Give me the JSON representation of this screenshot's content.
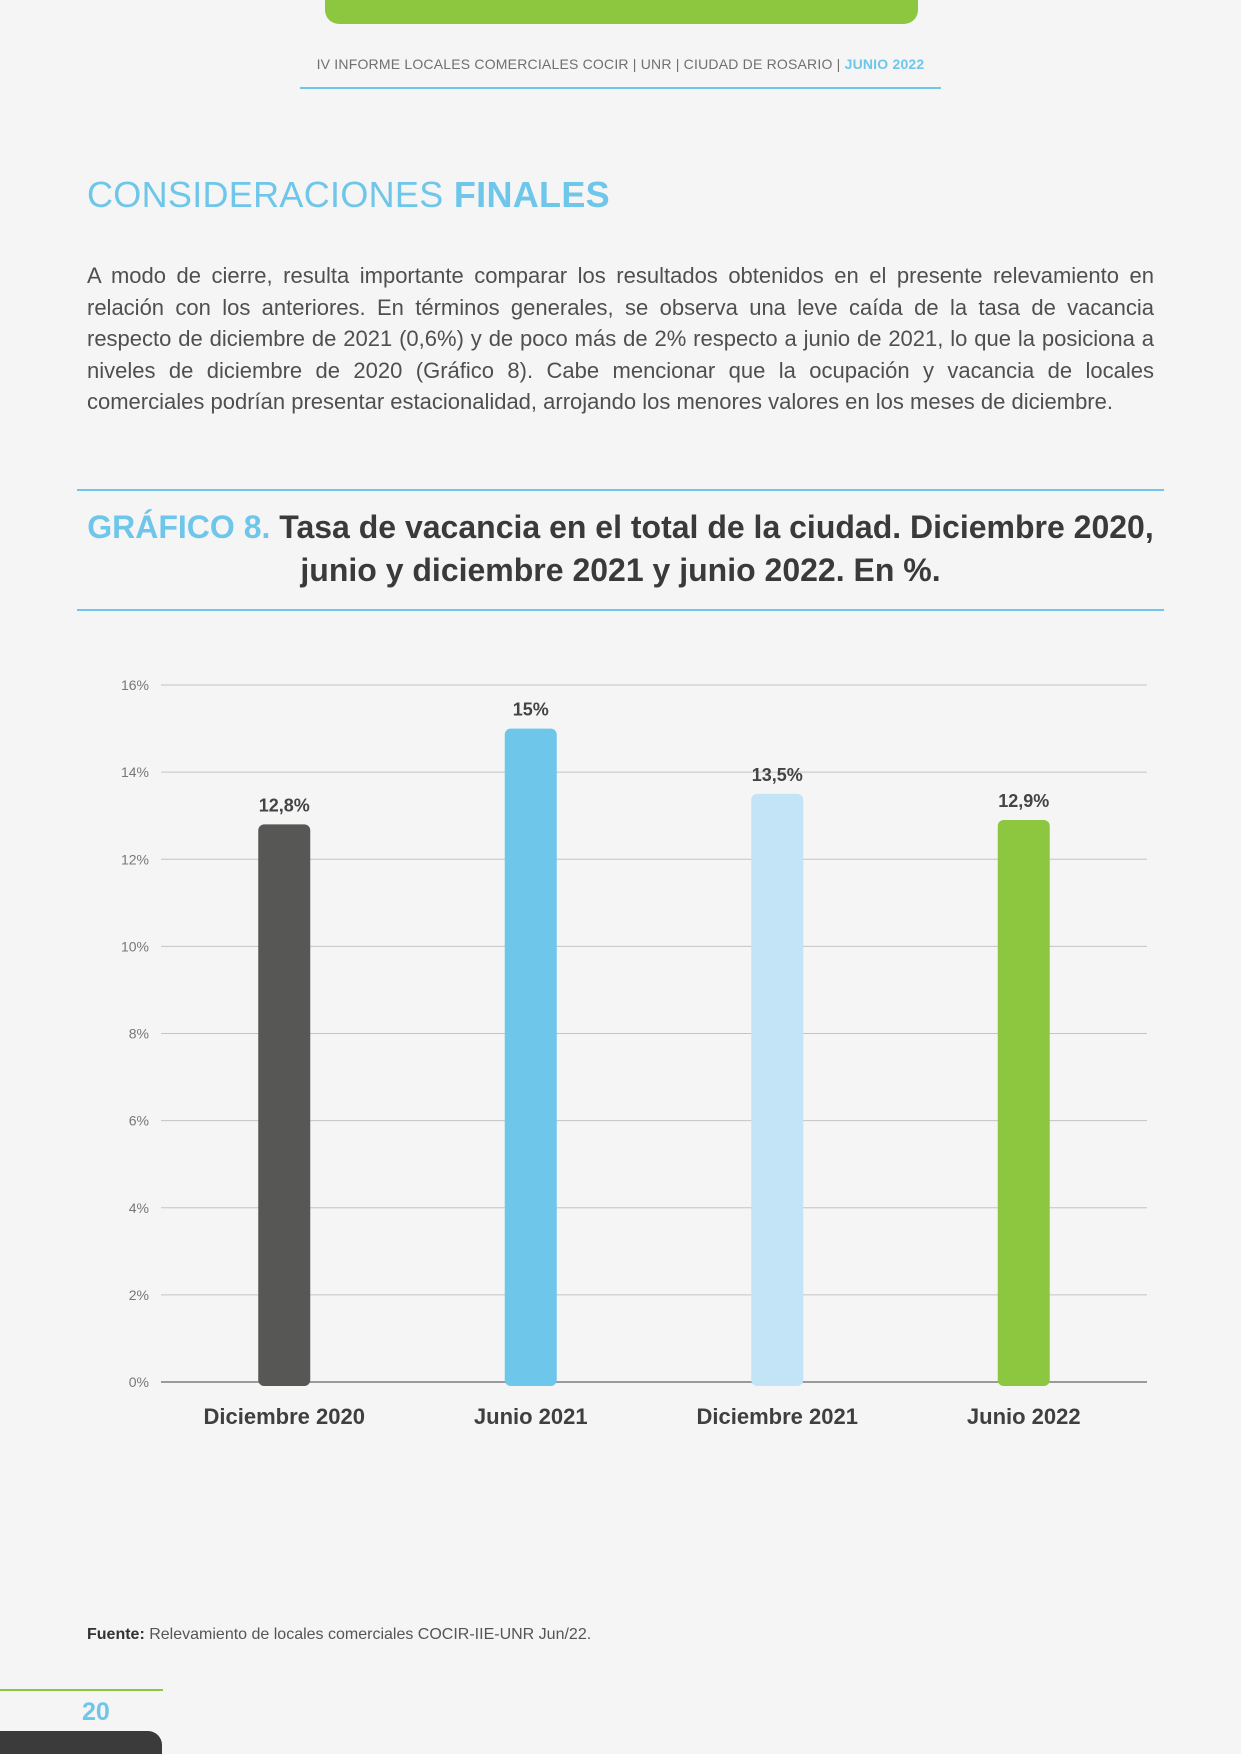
{
  "header": {
    "text": "IV INFORME LOCALES COMERCIALES COCIR | UNR | CIUDAD DE ROSARIO | ",
    "accent": "JUNIO 2022"
  },
  "section": {
    "title_light": "CONSIDERACIONES ",
    "title_bold": "FINALES"
  },
  "intro": "A modo de cierre, resulta importante comparar los resultados obtenidos en el presente relevamiento en relación con los anteriores. En términos generales, se observa una leve caída de la tasa de vacancia respecto de diciembre de 2021 (0,6%) y de poco más de 2% respecto a junio de 2021, lo que la posiciona a niveles de diciembre de 2020 (Gráfico 8). Cabe mencionar que la ocupación y vacancia de locales comerciales podrían presentar estacionalidad, arrojando los menores valores en los meses de diciembre.",
  "chart_heading": {
    "number": "GRÁFICO 8.",
    "title": " Tasa de vacancia en el total de la ciudad. Diciembre 2020, junio y diciembre 2021 y junio 2022. En %."
  },
  "chart_data": {
    "type": "bar",
    "categories": [
      "Diciembre 2020",
      "Junio 2021",
      "Diciembre 2021",
      "Junio 2022"
    ],
    "values": [
      12.8,
      15,
      13.5,
      12.9
    ],
    "value_labels": [
      "12,8%",
      "15%",
      "13,5%",
      "12,9%"
    ],
    "colors": [
      "#575756",
      "#6ec6ea",
      "#c3e4f6",
      "#8dc63f"
    ],
    "yticks": [
      "0%",
      "2%",
      "4%",
      "6%",
      "8%",
      "10%",
      "12%",
      "14%",
      "16%"
    ],
    "ylim": [
      0,
      16
    ],
    "grid": true
  },
  "source": {
    "label": "Fuente:",
    "text": " Relevamiento de locales comerciales COCIR-IIE-UNR Jun/22."
  },
  "page_number": "20"
}
